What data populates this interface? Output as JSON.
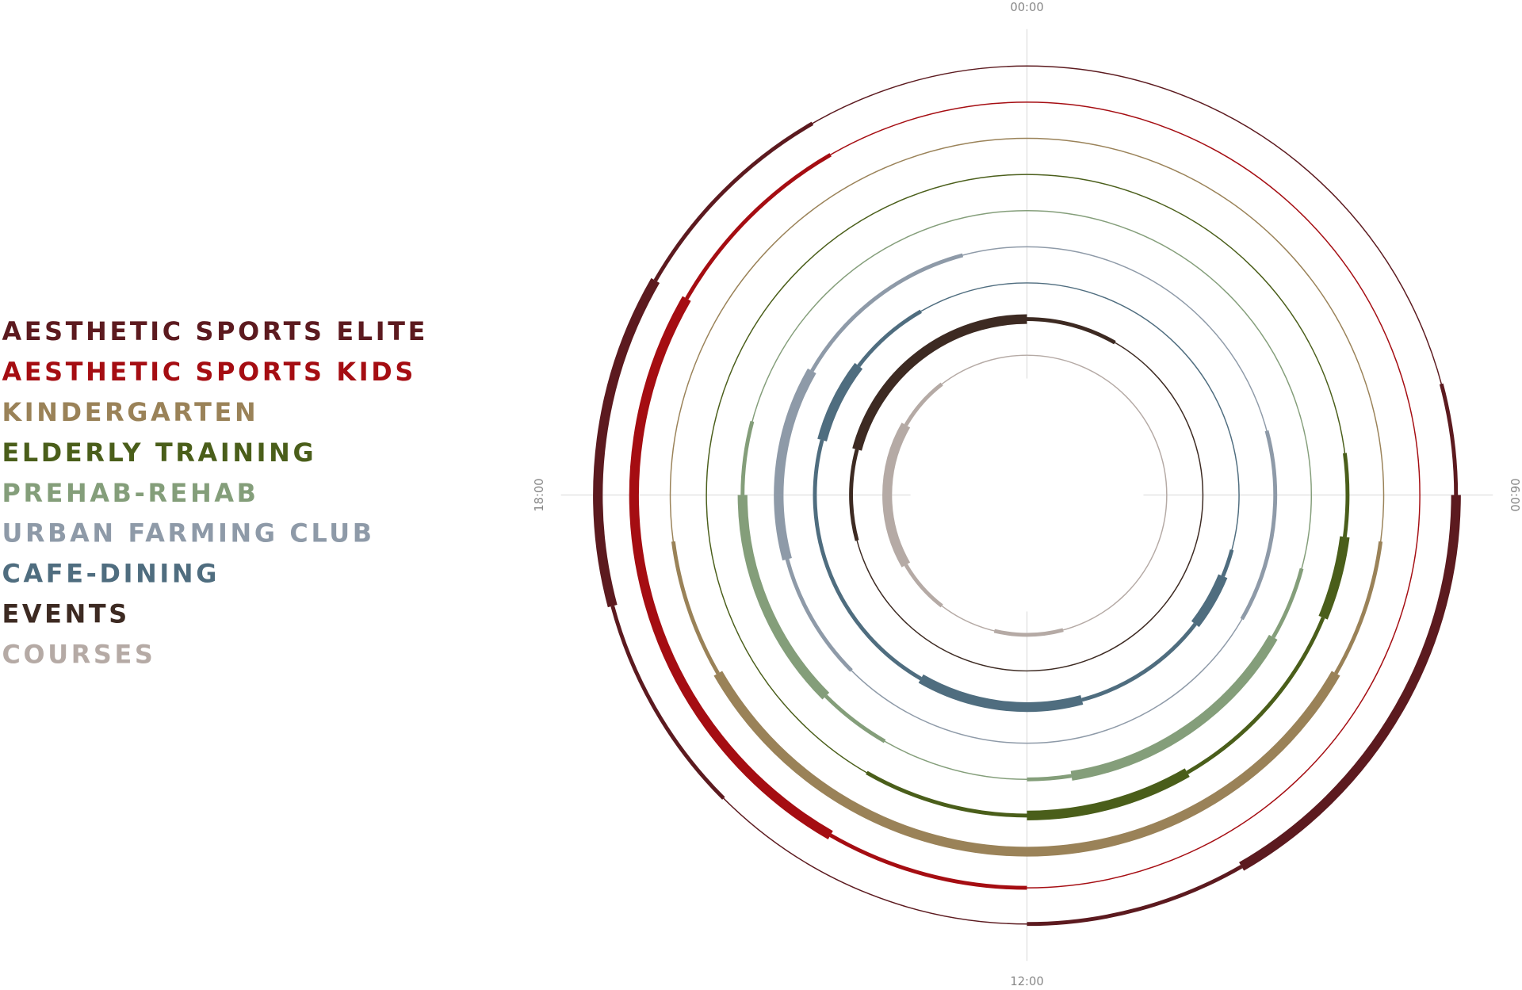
{
  "chart_data": {
    "type": "radial",
    "xlim": [
      0,
      24
    ],
    "xticks": [
      {
        "value": 0,
        "label": "00:00"
      },
      {
        "value": 6,
        "label": "06:00"
      },
      {
        "value": 12,
        "label": "12:00"
      },
      {
        "value": 18,
        "label": "18:00"
      }
    ],
    "series": [
      {
        "name": "AESTHETIC SPORTS ELITE",
        "color": "#5c1a1f",
        "segments": [
          {
            "start": 5,
            "end": 6,
            "level": 2
          },
          {
            "start": 6,
            "end": 10,
            "level": 3
          },
          {
            "start": 10,
            "end": 12,
            "level": 2
          },
          {
            "start": 15,
            "end": 17,
            "level": 2
          },
          {
            "start": 17,
            "end": 20,
            "level": 3
          },
          {
            "start": 20,
            "end": 22,
            "level": 2
          }
        ]
      },
      {
        "name": "AESTHETIC SPORTS KIDS",
        "color": "#a50d12",
        "segments": [
          {
            "start": 12,
            "end": 14,
            "level": 2
          },
          {
            "start": 14,
            "end": 20,
            "level": 3
          },
          {
            "start": 20,
            "end": 22,
            "level": 2
          }
        ]
      },
      {
        "name": "KINDERGARTEN",
        "color": "#9a8258",
        "segments": [
          {
            "start": 6.5,
            "end": 8,
            "level": 2
          },
          {
            "start": 8,
            "end": 16,
            "level": 3
          },
          {
            "start": 16,
            "end": 17.5,
            "level": 2
          }
        ]
      },
      {
        "name": "ELDERLY TRAINING",
        "color": "#4a5e1a",
        "segments": [
          {
            "start": 5.5,
            "end": 6.5,
            "level": 2
          },
          {
            "start": 6.5,
            "end": 7.5,
            "level": 3
          },
          {
            "start": 7.5,
            "end": 10,
            "level": 2
          },
          {
            "start": 10,
            "end": 12,
            "level": 3
          },
          {
            "start": 12,
            "end": 14,
            "level": 2
          }
        ]
      },
      {
        "name": "PREHAB-REHAB",
        "color": "#849e7a",
        "segments": [
          {
            "start": 7,
            "end": 8,
            "level": 2
          },
          {
            "start": 8,
            "end": 11.4,
            "level": 3
          },
          {
            "start": 11.4,
            "end": 12,
            "level": 2
          },
          {
            "start": 14,
            "end": 15,
            "level": 2
          },
          {
            "start": 15,
            "end": 18,
            "level": 3
          },
          {
            "start": 18,
            "end": 19,
            "level": 2
          }
        ]
      },
      {
        "name": "URBAN FARMING CLUB",
        "color": "#8e9aa8",
        "segments": [
          {
            "start": 5,
            "end": 8,
            "level": 2
          },
          {
            "start": 15,
            "end": 17,
            "level": 2
          },
          {
            "start": 17,
            "end": 20,
            "level": 3
          },
          {
            "start": 20,
            "end": 23,
            "level": 2
          }
        ]
      },
      {
        "name": "CAFE-DINING",
        "color": "#4f6d7f",
        "segments": [
          {
            "start": 7,
            "end": 7.5,
            "level": 2
          },
          {
            "start": 7.5,
            "end": 8.5,
            "level": 3
          },
          {
            "start": 8.5,
            "end": 11,
            "level": 2
          },
          {
            "start": 11,
            "end": 14,
            "level": 3
          },
          {
            "start": 14,
            "end": 19,
            "level": 2
          },
          {
            "start": 19,
            "end": 20.5,
            "level": 3
          },
          {
            "start": 20.5,
            "end": 22,
            "level": 2
          }
        ]
      },
      {
        "name": "EVENTS",
        "color": "#3d2a22",
        "segments": [
          {
            "start": 0,
            "end": 2,
            "level": 2
          },
          {
            "start": 17,
            "end": 19,
            "level": 2
          },
          {
            "start": 19,
            "end": 24,
            "level": 3
          }
        ]
      },
      {
        "name": "COURSES",
        "color": "#b5aaa5",
        "segments": [
          {
            "start": 11,
            "end": 12.9,
            "level": 2
          },
          {
            "start": 14.5,
            "end": 16,
            "level": 2
          },
          {
            "start": 16,
            "end": 20,
            "level": 3
          },
          {
            "start": 20,
            "end": 21.5,
            "level": 2
          }
        ]
      }
    ]
  }
}
